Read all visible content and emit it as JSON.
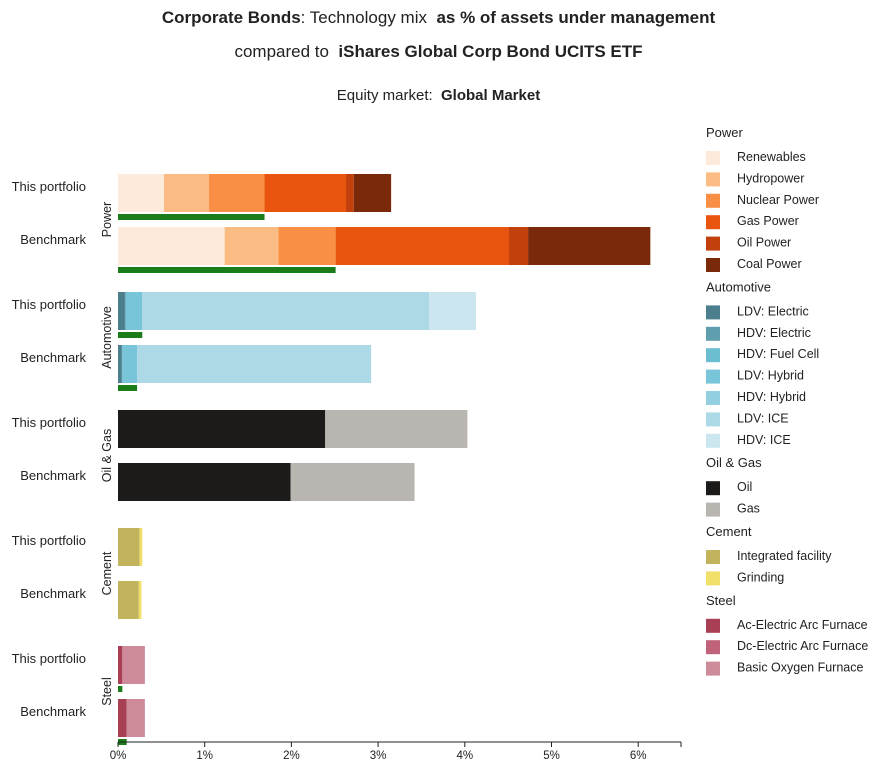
{
  "title": {
    "part1_bold": "Corporate Bonds",
    "part1_rest": ": Technology mix",
    "part1_metric": "as % of assets under management",
    "part2_prefix": "compared to",
    "part2_bold": "iShares Global Corp Bond UCITS ETF",
    "part3_prefix": "Equity market:",
    "part3_bold": "Global Market"
  },
  "chart_data": {
    "type": "bar",
    "orientation": "horizontal",
    "stacked": true,
    "x_ticks": [
      "0%",
      "1%",
      "2%",
      "3%",
      "4%",
      "5%",
      "6%"
    ],
    "xlim": [
      0,
      6.5
    ],
    "sectors": [
      {
        "name": "Power",
        "technologies": [
          {
            "name": "Renewables",
            "color": "#fdeadb"
          },
          {
            "name": "Hydropower",
            "color": "#fbbc84"
          },
          {
            "name": "Nuclear Power",
            "color": "#f98f45"
          },
          {
            "name": "Gas Power",
            "color": "#e9550f"
          },
          {
            "name": "Oil Power",
            "color": "#c2400c"
          },
          {
            "name": "Coal Power",
            "color": "#7a2a0a"
          }
        ],
        "rows": [
          {
            "label": "This portfolio",
            "values": [
              0.53,
              0.52,
              0.64,
              0.94,
              0.09,
              0.43
            ],
            "low_carbon": 1.69
          },
          {
            "label": "Benchmark",
            "values": [
              1.23,
              0.62,
              0.66,
              2.0,
              0.22,
              1.41
            ],
            "low_carbon": 2.51
          }
        ]
      },
      {
        "name": "Automotive",
        "technologies": [
          {
            "name": "LDV: Electric",
            "color": "#4b7f8e"
          },
          {
            "name": "HDV: Electric",
            "color": "#5f9eae"
          },
          {
            "name": "HDV: Fuel Cell",
            "color": "#6bbdd2"
          },
          {
            "name": "LDV: Hybrid",
            "color": "#78c4d8"
          },
          {
            "name": "HDV: Hybrid",
            "color": "#93cfe0"
          },
          {
            "name": "LDV: ICE",
            "color": "#add8e6"
          },
          {
            "name": "HDV: ICE",
            "color": "#cbe6ee"
          }
        ],
        "rows": [
          {
            "label": "This portfolio",
            "values": [
              0.08,
              0.01,
              0.0,
              0.19,
              0.0,
              3.31,
              0.54
            ],
            "low_carbon": 0.28
          },
          {
            "label": "Benchmark",
            "values": [
              0.04,
              0.01,
              0.0,
              0.17,
              0.0,
              2.7,
              0.0
            ],
            "low_carbon": 0.22
          }
        ]
      },
      {
        "name": "Oil & Gas",
        "technologies": [
          {
            "name": "Oil",
            "color": "#1c1b1a"
          },
          {
            "name": "Gas",
            "color": "#b9b5b0"
          }
        ],
        "rows": [
          {
            "label": "This portfolio",
            "values": [
              2.39,
              1.64
            ]
          },
          {
            "label": "Benchmark",
            "values": [
              1.99,
              1.43
            ]
          }
        ]
      },
      {
        "name": "Cement",
        "technologies": [
          {
            "name": "Integrated facility",
            "color": "#c2b45d"
          },
          {
            "name": "Grinding",
            "color": "#f0e06a"
          }
        ],
        "rows": [
          {
            "label": "This portfolio",
            "values": [
              0.25,
              0.03
            ]
          },
          {
            "label": "Benchmark",
            "values": [
              0.24,
              0.03
            ]
          }
        ]
      },
      {
        "name": "Steel",
        "technologies": [
          {
            "name": "Ac-Electric Arc Furnace",
            "color": "#a83f55"
          },
          {
            "name": "Dc-Electric Arc Furnace",
            "color": "#c0637a"
          },
          {
            "name": "Basic Oxygen Furnace",
            "color": "#cd8b9a"
          }
        ],
        "rows": [
          {
            "label": "This portfolio",
            "values": [
              0.05,
              0.0,
              0.26
            ],
            "low_carbon": 0.05
          },
          {
            "label": "Benchmark",
            "values": [
              0.1,
              0.0,
              0.21
            ],
            "low_carbon": 0.1
          }
        ]
      }
    ],
    "low_carbon_color": "#1a7d1a",
    "legend_position": "right"
  }
}
